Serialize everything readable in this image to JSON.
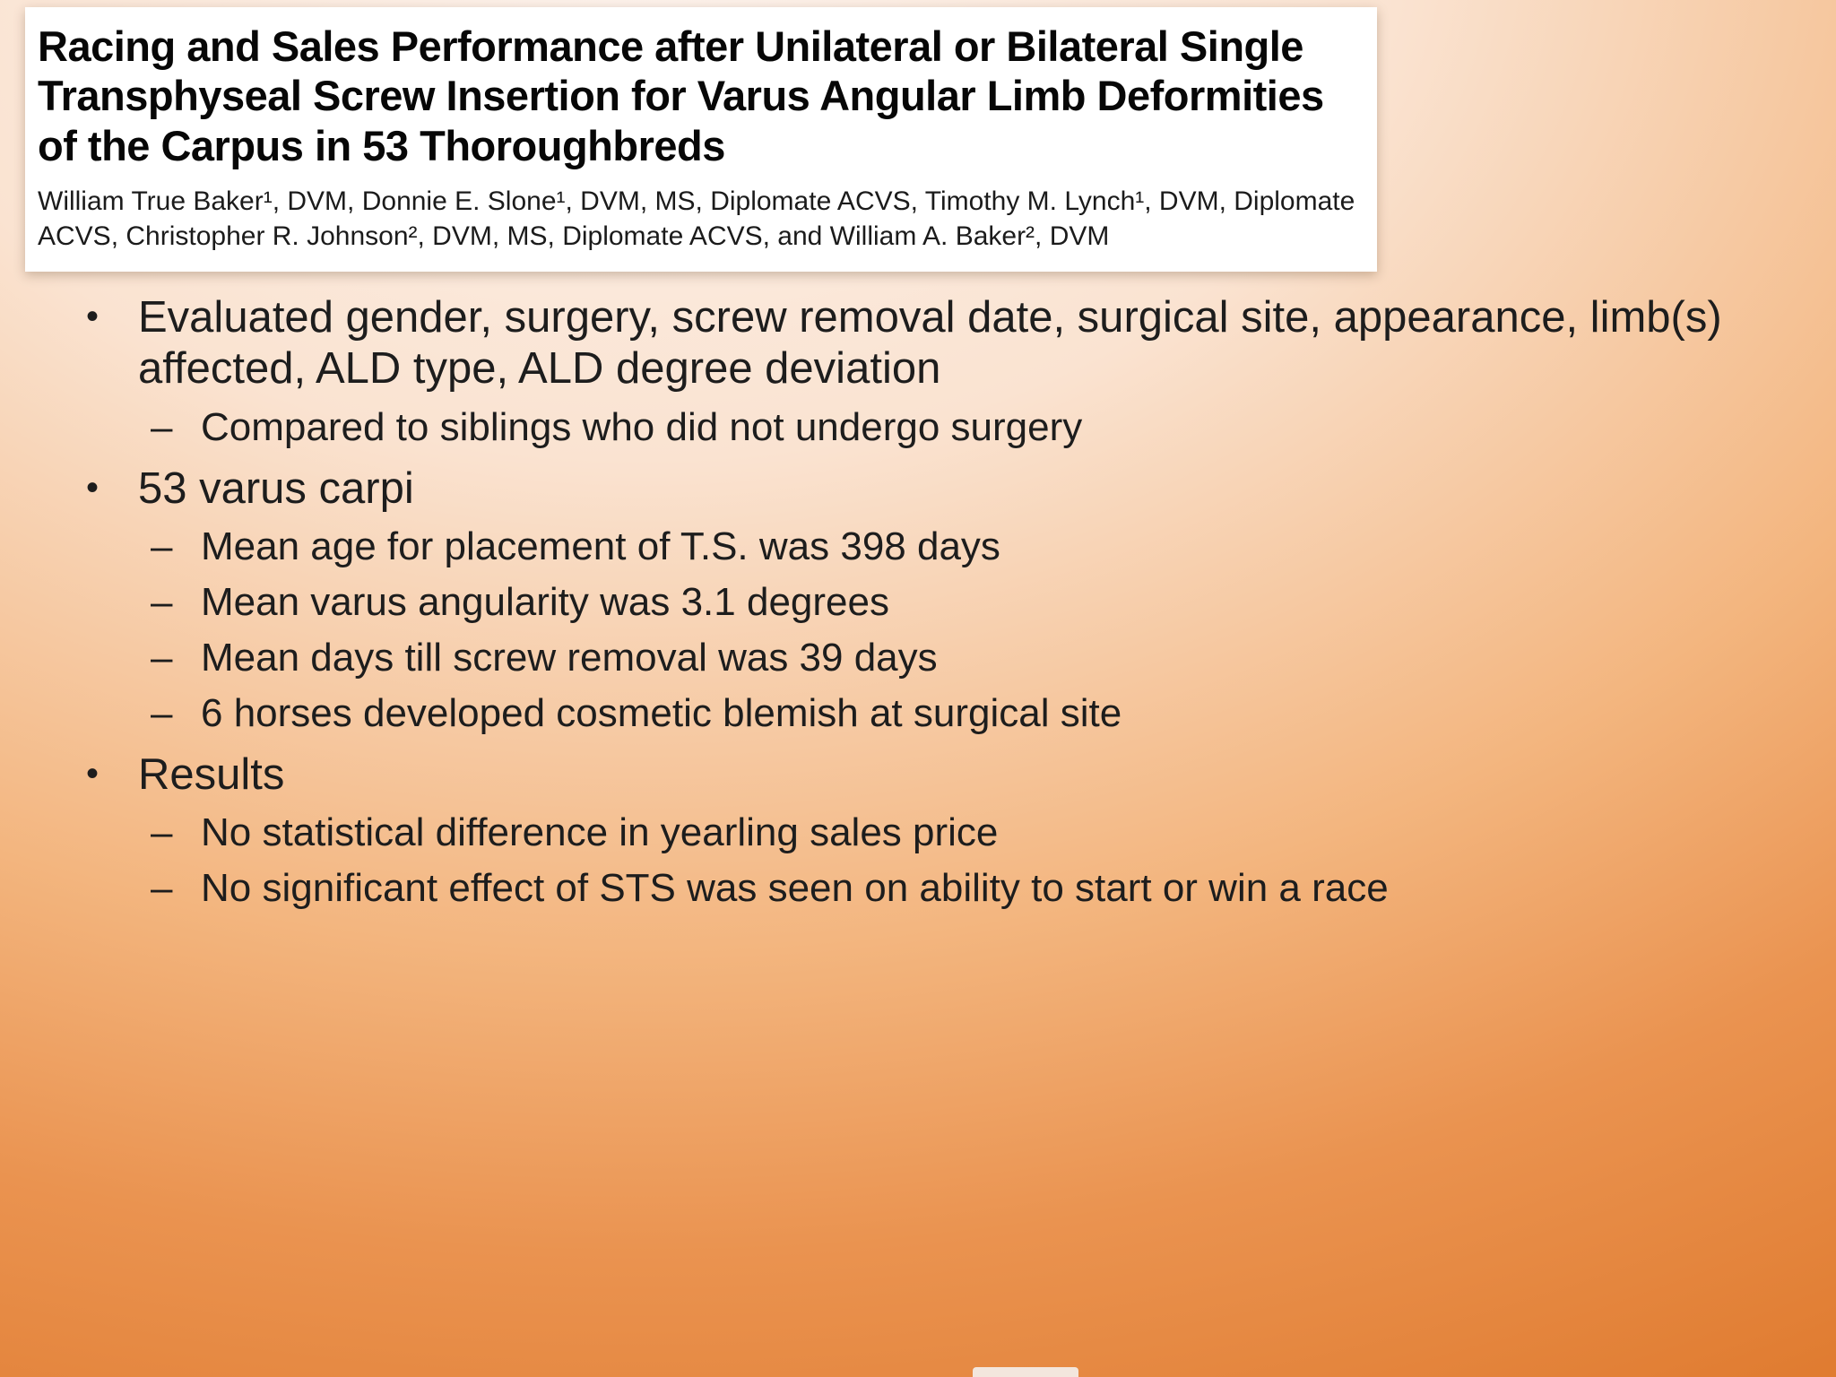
{
  "citation": {
    "title": "Racing and Sales Performance after Unilateral or Bilateral Single Transphyseal Screw Insertion for Varus Angular Limb Deformities of the Carpus in 53 Thoroughbreds",
    "authors": "William True Baker¹, DVM, Donnie E. Slone¹, DVM, MS, Diplomate ACVS, Timothy M. Lynch¹, DVM, Diplomate ACVS, Christopher R. Johnson², DVM, MS, Diplomate ACVS, and William A. Baker², DVM"
  },
  "markers": {
    "level1": "•",
    "level2": "–"
  },
  "bullets": [
    {
      "text": "Evaluated gender, surgery, screw removal date, surgical site, appearance, limb(s) affected, ALD type, ALD degree deviation",
      "subs": [
        "Compared to siblings who did not undergo surgery"
      ]
    },
    {
      "text": "53 varus carpi",
      "subs": [
        "Mean age for placement of T.S. was 398 days",
        "Mean varus angularity was 3.1 degrees",
        "Mean days till screw removal was 39 days",
        "6 horses developed cosmetic blemish at surgical site"
      ]
    },
    {
      "text": "Results",
      "subs": [
        "No statistical difference in yearling sales price",
        "No significant effect of STS was seen on ability to start or win a race"
      ]
    }
  ],
  "colors": {
    "background_top": "#fdf3ed",
    "background_bottom": "#e07c31",
    "citation_box": "#ffffff",
    "text": "#1d1d1d"
  }
}
